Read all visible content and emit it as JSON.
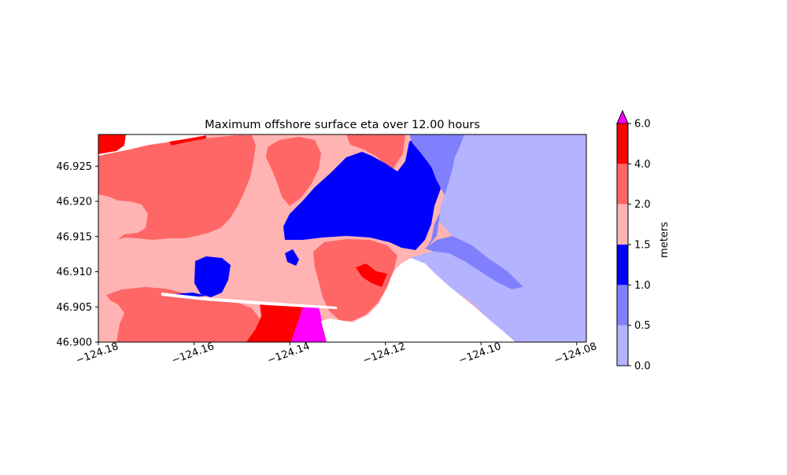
{
  "chart_data": {
    "type": "heatmap",
    "title": "Maximum offshore surface eta over 12.00 hours",
    "xlabel": "",
    "ylabel": "",
    "xlim": [
      -124.18,
      -124.078
    ],
    "ylim": [
      46.9,
      46.9295
    ],
    "x_ticks": [
      -124.18,
      -124.16,
      -124.14,
      -124.12,
      -124.1,
      -124.08
    ],
    "x_tick_labels": [
      "−124.18",
      "−124.16",
      "−124.14",
      "−124.12",
      "−124.10",
      "−124.08"
    ],
    "y_ticks": [
      46.9,
      46.905,
      46.91,
      46.915,
      46.92,
      46.925
    ],
    "y_tick_labels": [
      "46.900",
      "46.905",
      "46.910",
      "46.915",
      "46.920",
      "46.925"
    ],
    "grid": false,
    "colorbar": {
      "label": "meters",
      "levels": [
        0.0,
        0.5,
        1.0,
        1.5,
        2.0,
        4.0,
        6.0
      ],
      "tick_labels": [
        "0.0",
        "0.5",
        "1.0",
        "1.5",
        "2.0",
        "4.0",
        "6.0"
      ],
      "colors": [
        "#b3b3ff",
        "#8080ff",
        "#0000ff",
        "#ffb3b3",
        "#ff6666",
        "#ff0000"
      ],
      "extend_max_color": "#ff00ff",
      "placement": "right"
    },
    "background_land_color": "#ffffff"
  }
}
